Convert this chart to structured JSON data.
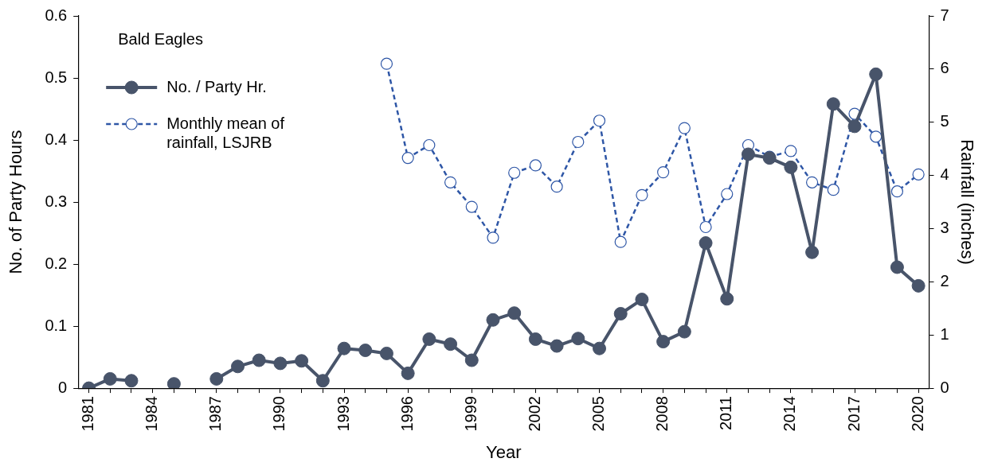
{
  "chart_data": {
    "type": "line",
    "xlabel": "Year",
    "ylabel": "No. of Party Hours",
    "y2label": "Rainfall (inches)",
    "legend_title": "Bald Eagles",
    "legend": "top left",
    "grid": false,
    "categories": [
      "1981",
      null,
      null,
      "1984",
      null,
      null,
      "1987",
      null,
      null,
      "1990",
      null,
      null,
      "1993",
      null,
      null,
      "1996",
      null,
      null,
      "1999",
      null,
      null,
      "2002",
      null,
      null,
      "2005",
      null,
      null,
      "2008",
      null,
      null,
      "2011",
      null,
      null,
      "2014",
      null,
      null,
      "2017",
      null,
      null,
      "2020"
    ],
    "ylim": [
      0,
      0.6
    ],
    "yticks": [
      0,
      0.1,
      0.2,
      0.3,
      0.4,
      0.5,
      0.6
    ],
    "y2lim": [
      0,
      7
    ],
    "y2ticks": [
      0,
      1,
      2,
      3,
      4,
      5,
      6,
      7
    ],
    "series": [
      {
        "name": "No. / Party Hr.",
        "color": "#48546a",
        "marker": "circle",
        "line_style": "solid",
        "values": [
          0,
          0.015,
          0.012,
          null,
          0.007,
          null,
          0.015,
          0.035,
          0.045,
          0.04,
          0.044,
          0.012,
          0.064,
          0.061,
          0.056,
          0.024,
          0.079,
          0.071,
          0.045,
          0.11,
          0.121,
          0.079,
          0.068,
          0.08,
          0.064,
          0.12,
          0.143,
          0.075,
          0.091,
          0.234,
          0.144,
          0.377,
          0.371,
          0.356,
          0.219,
          0.458,
          0.422,
          0.506,
          0.195,
          0.165
        ]
      },
      {
        "name": "Monthly mean of rainfall, LSJRB",
        "color": "#2e56a6",
        "marker": "circle",
        "line_style": "dashed",
        "axis": "y2",
        "values": [
          null,
          null,
          null,
          null,
          null,
          null,
          null,
          null,
          null,
          null,
          null,
          null,
          null,
          null,
          6.1,
          4.33,
          4.57,
          3.87,
          3.41,
          2.83,
          4.05,
          4.19,
          3.79,
          4.63,
          5.03,
          2.75,
          3.63,
          4.06,
          4.89,
          3.03,
          3.65,
          4.57,
          4.35,
          4.46,
          3.87,
          3.73,
          5.16,
          4.73,
          3.7,
          4.02
        ]
      }
    ]
  }
}
